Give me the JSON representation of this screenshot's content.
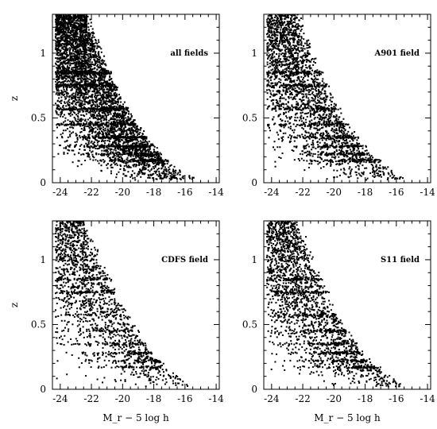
{
  "chart_data": [
    {
      "type": "scatter",
      "panel_label": "all fields",
      "xlabel": "",
      "ylabel": "z",
      "xlim": [
        -24.5,
        -13.8
      ],
      "ylim": [
        0,
        1.3
      ],
      "x_ticks": [
        "-24",
        "-22",
        "-20",
        "-18",
        "-16",
        "-14"
      ],
      "y_ticks": [
        "0",
        "0.5",
        "1"
      ],
      "density": 1.0
    },
    {
      "type": "scatter",
      "panel_label": "A901 field",
      "xlabel": "",
      "ylabel": "",
      "xlim": [
        -24.5,
        -13.8
      ],
      "ylim": [
        0,
        1.3
      ],
      "x_ticks": [
        "-24",
        "-22",
        "-20",
        "-18",
        "-16",
        "-14"
      ],
      "y_ticks": [
        "0",
        "0.5",
        "1"
      ],
      "density": 0.55
    },
    {
      "type": "scatter",
      "panel_label": "CDFS field",
      "xlabel": "M_r − 5 log h",
      "ylabel": "z",
      "xlim": [
        -24.5,
        -13.8
      ],
      "ylim": [
        0,
        1.3
      ],
      "x_ticks": [
        "-24",
        "-22",
        "-20",
        "-18",
        "-16",
        "-14"
      ],
      "y_ticks": [
        "0",
        "0.5",
        "1"
      ],
      "density": 0.35
    },
    {
      "type": "scatter",
      "panel_label": "S11 field",
      "xlabel": "M_r − 5 log h",
      "ylabel": "",
      "xlim": [
        -24.5,
        -13.8
      ],
      "ylim": [
        0,
        1.3
      ],
      "x_ticks": [
        "-24",
        "-22",
        "-20",
        "-18",
        "-16",
        "-14"
      ],
      "y_ticks": [
        "0",
        "0.5",
        "1"
      ],
      "density": 0.45
    }
  ]
}
